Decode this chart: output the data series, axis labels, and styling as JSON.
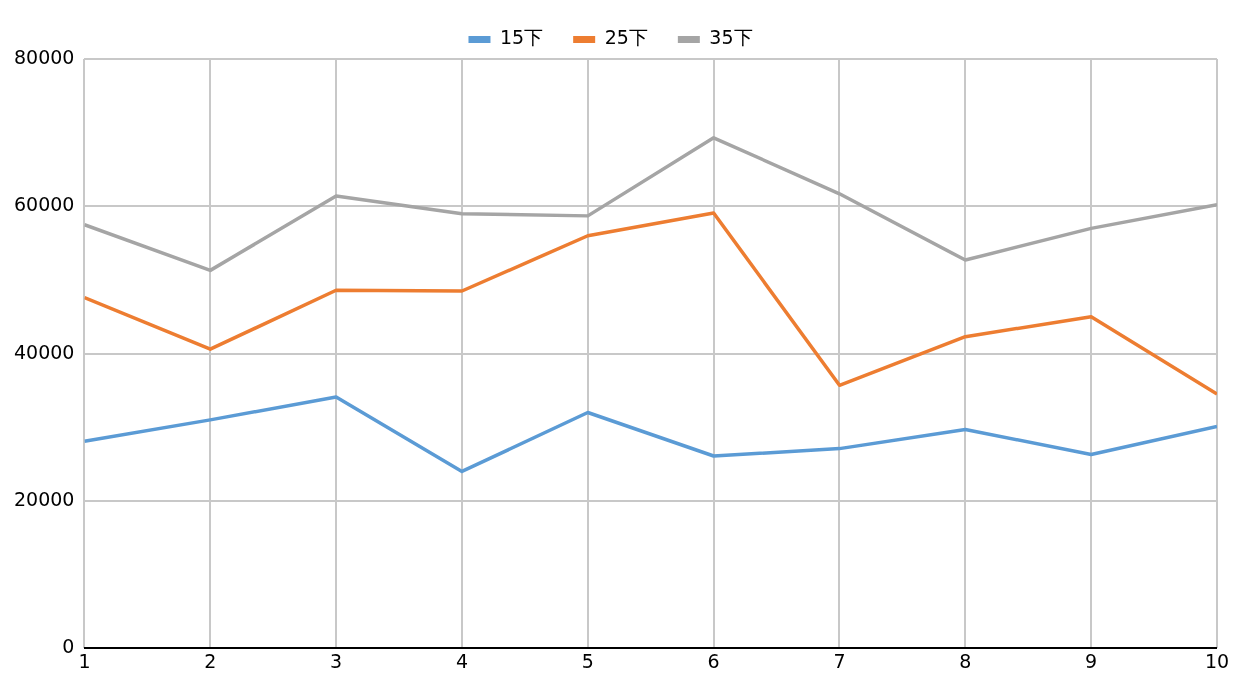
{
  "chart_data": {
    "type": "line",
    "x": [
      1,
      2,
      3,
      4,
      5,
      6,
      7,
      8,
      9,
      10
    ],
    "series": [
      {
        "name": "15下",
        "color": "#5b9bd5",
        "values": [
          28100,
          31000,
          34100,
          24000,
          32000,
          26100,
          27100,
          29700,
          26300,
          30100
        ]
      },
      {
        "name": "25下",
        "color": "#ed7d31",
        "values": [
          47600,
          40600,
          48600,
          48500,
          56000,
          59100,
          35700,
          42300,
          45000,
          34500
        ]
      },
      {
        "name": "35下",
        "color": "#a5a5a5",
        "values": [
          57500,
          51300,
          61400,
          59000,
          58700,
          69300,
          61700,
          52700,
          57000,
          60200
        ]
      }
    ],
    "xlim": [
      1,
      10
    ],
    "xticks": [
      1,
      2,
      3,
      4,
      5,
      6,
      7,
      8,
      9,
      10
    ],
    "ylim": [
      0,
      80000
    ],
    "yticks": [
      0,
      20000,
      40000,
      60000,
      80000
    ],
    "grid": true,
    "legend": "top",
    "marker": "none",
    "line_style": "solid"
  }
}
